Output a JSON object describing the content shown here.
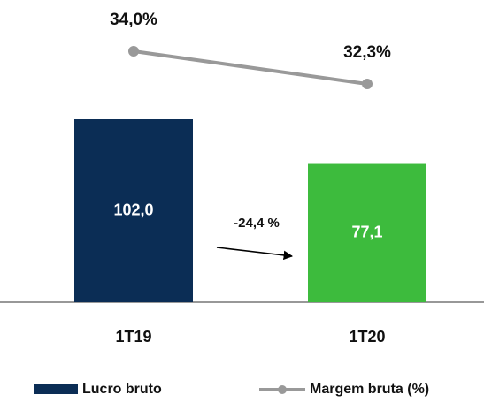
{
  "chart_data": {
    "type": "bar-line",
    "categories": [
      "1T19",
      "1T20"
    ],
    "series": [
      {
        "name": "Lucro bruto",
        "color": "#0b2d55",
        "colors": [
          "#0b2d55",
          "#3dbb3d"
        ],
        "values": [
          102.0,
          77.1
        ],
        "value_labels": [
          "102,0",
          "77,1"
        ]
      },
      {
        "name": "Margem bruta (%)",
        "color": "#999999",
        "axis": "y2",
        "values": [
          34.0,
          32.3
        ],
        "value_labels": [
          "34,0%",
          "32,3%"
        ]
      }
    ],
    "annotations": [
      "-24,4 %"
    ]
  }
}
